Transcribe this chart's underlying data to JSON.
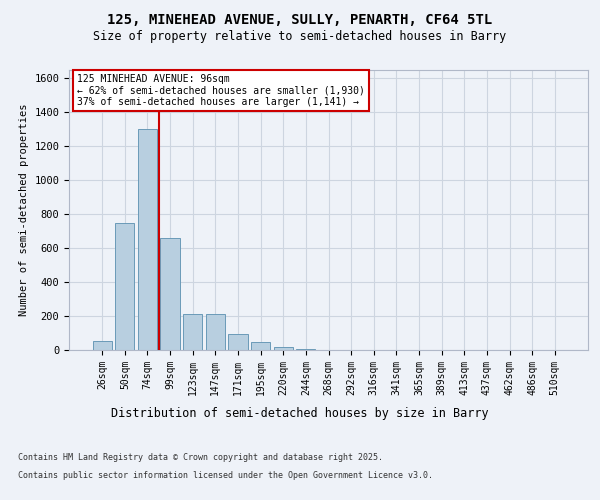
{
  "title_line1": "125, MINEHEAD AVENUE, SULLY, PENARTH, CF64 5TL",
  "title_line2": "Size of property relative to semi-detached houses in Barry",
  "xlabel": "Distribution of semi-detached houses by size in Barry",
  "ylabel": "Number of semi-detached properties",
  "categories": [
    "26sqm",
    "50sqm",
    "74sqm",
    "99sqm",
    "123sqm",
    "147sqm",
    "171sqm",
    "195sqm",
    "220sqm",
    "244sqm",
    "268sqm",
    "292sqm",
    "316sqm",
    "341sqm",
    "365sqm",
    "389sqm",
    "413sqm",
    "437sqm",
    "462sqm",
    "486sqm",
    "510sqm"
  ],
  "values": [
    55,
    750,
    1300,
    660,
    215,
    215,
    95,
    50,
    20,
    7,
    2,
    0,
    0,
    0,
    0,
    0,
    0,
    0,
    0,
    0,
    0
  ],
  "bar_color": "#b8cfe0",
  "bar_edge_color": "#6a9ab8",
  "grid_color": "#cdd5e0",
  "background_color": "#eef2f8",
  "vline_color": "#cc0000",
  "vline_x": 2.5,
  "annotation_title": "125 MINEHEAD AVENUE: 96sqm",
  "annotation_line1": "← 62% of semi-detached houses are smaller (1,930)",
  "annotation_line2": "37% of semi-detached houses are larger (1,141) →",
  "annotation_box_color": "#ffffff",
  "annotation_box_edge": "#cc0000",
  "footer_line1": "Contains HM Land Registry data © Crown copyright and database right 2025.",
  "footer_line2": "Contains public sector information licensed under the Open Government Licence v3.0.",
  "ylim": [
    0,
    1650
  ],
  "yticks": [
    0,
    200,
    400,
    600,
    800,
    1000,
    1200,
    1400,
    1600
  ],
  "fig_width": 6.0,
  "fig_height": 5.0,
  "dpi": 100
}
